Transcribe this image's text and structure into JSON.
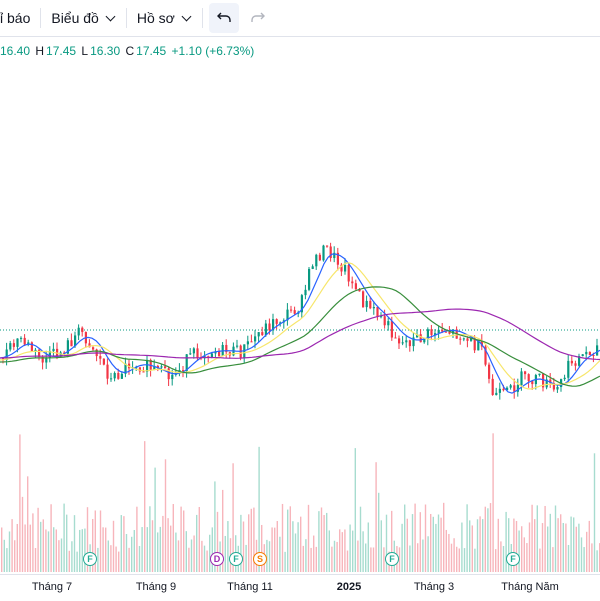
{
  "toolbar": {
    "indicators_label": "ỉ báo",
    "chart_label": "Biểu đồ",
    "profile_label": "Hồ sơ"
  },
  "ohlc": {
    "open": "16.40",
    "high_label": "H",
    "high": "17.45",
    "low_label": "L",
    "low": "16.30",
    "close_label": "C",
    "close": "17.45",
    "change": "+1.10 (+6.73%)"
  },
  "xaxis": {
    "labels": [
      "Tháng 7",
      "Tháng 9",
      "Tháng 11",
      "2025",
      "Tháng 3",
      "Tháng Năm"
    ]
  },
  "events": [
    {
      "letter": "F",
      "color": "#22ab94"
    },
    {
      "letter": "D",
      "color": "#9c27b0"
    },
    {
      "letter": "F",
      "color": "#22ab94"
    },
    {
      "letter": "S",
      "color": "#f57c00"
    },
    {
      "letter": "F",
      "color": "#22ab94"
    },
    {
      "letter": "F",
      "color": "#22ab94"
    }
  ],
  "colors": {
    "up": "#089981",
    "down": "#f23645",
    "ma_fast": "#2962ff",
    "ma_yellow": "#f7e66b",
    "ma_green": "#388e3c",
    "ma_purple": "#9c27b0"
  },
  "chart_data": {
    "type": "candlestick",
    "price_last": 17.45,
    "price_range_visible": [
      12.5,
      20.0
    ],
    "key_points": [
      {
        "label": "Tháng 7",
        "approx_price": 16.8
      },
      {
        "label": "Tháng 9",
        "approx_price": 16.3
      },
      {
        "label": "Tháng 11",
        "approx_price": 17.0
      },
      {
        "label": "2025",
        "approx_price": 19.0
      },
      {
        "label": "Tháng 3",
        "approx_price": 17.3
      },
      {
        "label": "Tháng Năm",
        "approx_price": 15.2
      }
    ]
  }
}
